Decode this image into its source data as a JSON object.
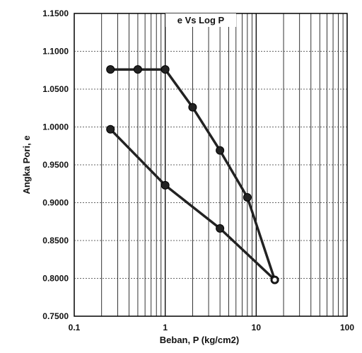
{
  "chart_data": {
    "type": "line",
    "title": "e Vs Log P",
    "xlabel": "Beban, P (kg/cm2)",
    "ylabel": "Angka Pori, e",
    "xscale": "log",
    "xlim": [
      0.1,
      100
    ],
    "ylim": [
      0.75,
      1.15
    ],
    "grid": true,
    "x_ticks": [
      "0.1",
      "1",
      "10",
      "100"
    ],
    "y_ticks": [
      "0.7500",
      "0.8000",
      "0.8500",
      "0.9000",
      "0.9500",
      "1.0000",
      "1.0500",
      "1.1000",
      "1.1500"
    ],
    "series": [
      {
        "color": "#222222",
        "points": [
          {
            "x": 0.25,
            "y": 1.076
          },
          {
            "x": 0.5,
            "y": 1.076
          },
          {
            "x": 1,
            "y": 1.076
          },
          {
            "x": 2,
            "y": 1.026
          },
          {
            "x": 4,
            "y": 0.969
          },
          {
            "x": 8,
            "y": 0.907
          },
          {
            "x": 16,
            "y": 0.798
          },
          {
            "x": 4,
            "y": 0.866
          },
          {
            "x": 1,
            "y": 0.923
          },
          {
            "x": 0.25,
            "y": 0.997
          }
        ]
      }
    ]
  }
}
